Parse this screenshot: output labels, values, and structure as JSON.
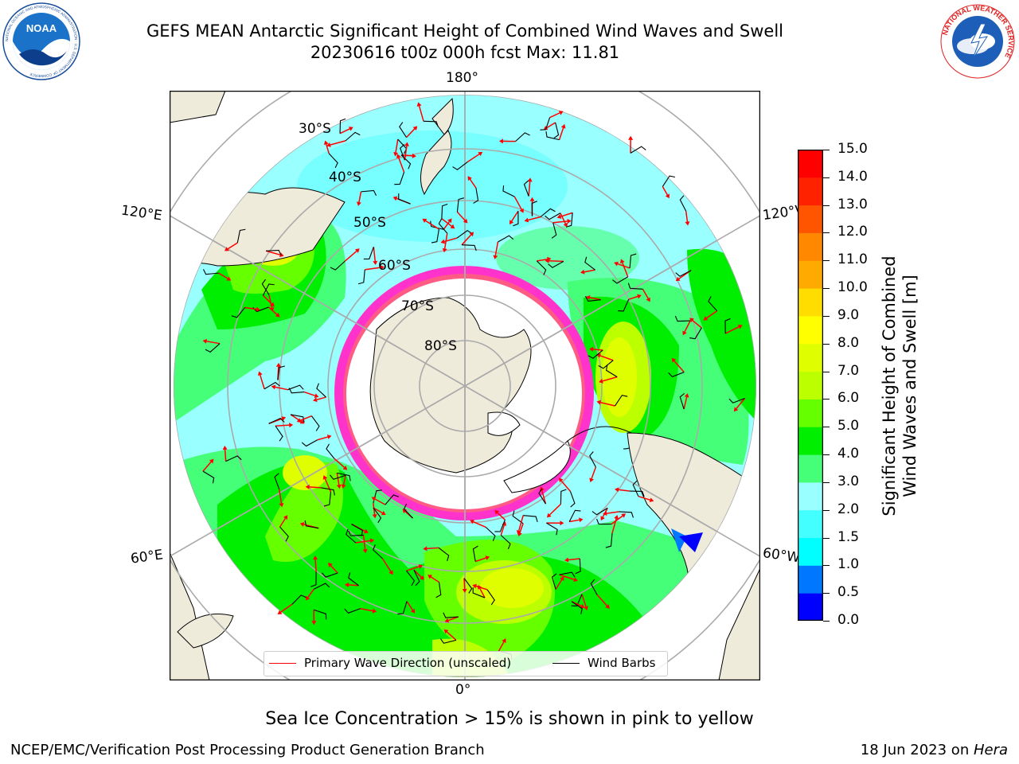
{
  "title": {
    "line1": "GEFS MEAN Antarctic Significant Height of Combined Wind Waves and Swell",
    "line2": "20230616 t00z 000h fcst   Max: 11.81"
  },
  "logos": {
    "noaa_text": "NOAA",
    "noaa_ring": "NATIONAL OCEANIC AND ATMOSPHERIC ADMINISTRATION · U.S. DEPARTMENT OF COMMERCE",
    "nws_ring": "NATIONAL WEATHER SERVICE"
  },
  "map": {
    "lon_labels": {
      "top": "180°",
      "bottom": "0°",
      "upper_left": "120°E",
      "upper_right": "120°W",
      "lower_left": "60°E",
      "lower_right": "60°W"
    },
    "lat_labels": [
      "30°S",
      "40°S",
      "50°S",
      "60°S",
      "70°S",
      "80°S"
    ],
    "colors": {
      "land": "#efebdb",
      "ice_edge": "#ff33cc",
      "arrow": "#ff0000",
      "barb": "#000000"
    }
  },
  "legend": {
    "primary_wave": "Primary Wave Direction (unscaled)",
    "wind_barbs": "Wind Barbs"
  },
  "colorbar": {
    "label_line1": "Significant Height of Combined",
    "label_line2": "Wind Waves and Swell [m]",
    "ticks": [
      "0.0",
      "0.5",
      "1.0",
      "1.5",
      "2.0",
      "3.0",
      "4.0",
      "5.0",
      "6.0",
      "7.0",
      "8.0",
      "9.0",
      "10.0",
      "11.0",
      "12.0",
      "13.0",
      "14.0",
      "15.0"
    ],
    "colors": [
      "#0000ff",
      "#0077ff",
      "#00ffff",
      "#44ffff",
      "#99ffff",
      "#44ff77",
      "#00ee00",
      "#66ff00",
      "#bbff00",
      "#dfff00",
      "#ffff00",
      "#ffdd00",
      "#ffaa00",
      "#ff8800",
      "#ff5500",
      "#ff2200",
      "#ff0000"
    ]
  },
  "captions": {
    "sea_ice": "Sea Ice Concentration > 15% is shown in pink to yellow",
    "footer_left": "NCEP/EMC/Verification Post Processing Product Generation Branch",
    "footer_date": "18 Jun 2023 on ",
    "footer_host": "Hera"
  }
}
